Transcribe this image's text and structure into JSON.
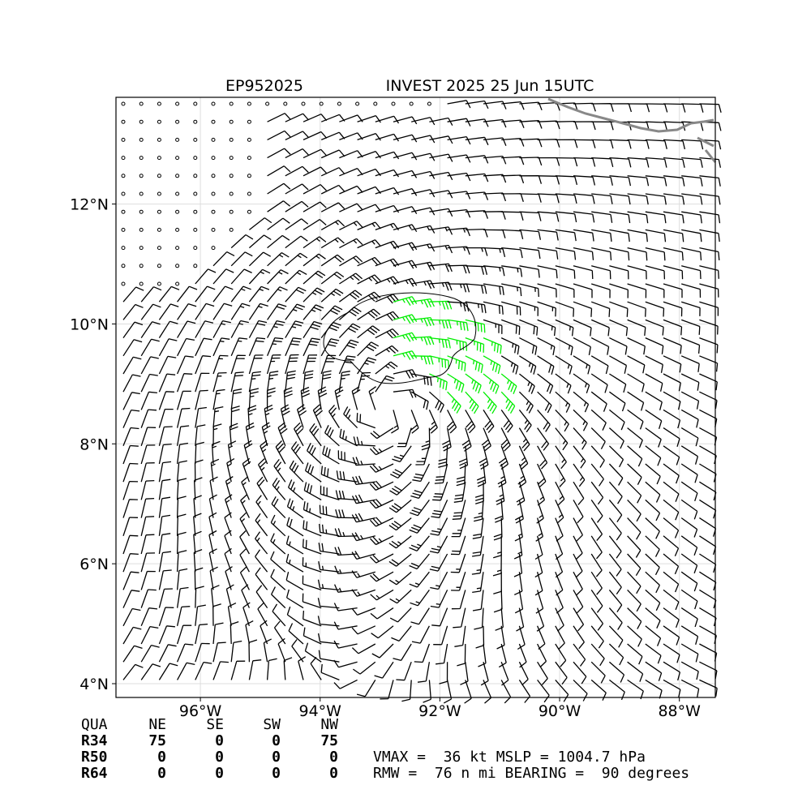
{
  "header": {
    "storm_id": "EP952025",
    "title": "INVEST 2025 25 Jun 15UTC"
  },
  "map": {
    "xlim": [
      -97.41,
      -87.4
    ],
    "ylim": [
      3.77,
      13.78
    ],
    "xticks": [
      {
        "value": -96,
        "label": "96°W"
      },
      {
        "value": -94,
        "label": "94°W"
      },
      {
        "value": -92,
        "label": "92°W"
      },
      {
        "value": -90,
        "label": "90°W"
      },
      {
        "value": -88,
        "label": "88°W"
      }
    ],
    "yticks": [
      {
        "value": 4,
        "label": "4°N"
      },
      {
        "value": 6,
        "label": "6°N"
      },
      {
        "value": 8,
        "label": "8°N"
      },
      {
        "value": 10,
        "label": "10°N"
      },
      {
        "value": 12,
        "label": "12°N"
      }
    ],
    "grid": true
  },
  "table": {
    "header": [
      "QUA",
      "NE",
      "SE",
      "SW",
      "NW"
    ],
    "rows": [
      [
        "R34",
        "75",
        "0",
        "0",
        "75"
      ],
      [
        "R50",
        "0",
        "0",
        "0",
        "0"
      ],
      [
        "R64",
        "0",
        "0",
        "0",
        "0"
      ]
    ]
  },
  "stats": [
    "VMAX =  36 kt MSLP = 1004.7 hPa",
    "RMW =  76 n mi BEARING =  90 degrees"
  ]
}
